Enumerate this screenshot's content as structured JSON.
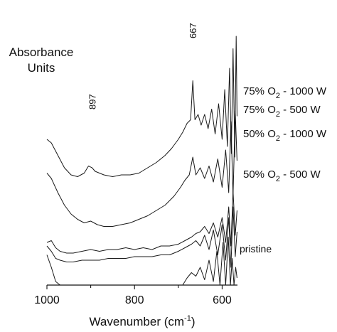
{
  "chart_data": {
    "type": "line",
    "title": "",
    "ylabel_line1": "Absorbance",
    "ylabel_line2": "Units",
    "xlabel_main": "Wavenumber (cm",
    "xlabel_sup": "-1",
    "xlabel_end": ")",
    "xlim": [
      1000,
      565
    ],
    "x_ticks": [
      1000,
      800,
      600
    ],
    "x_tick_labels": [
      "1000",
      "800",
      "600"
    ],
    "peak_annotations": [
      {
        "label": "897",
        "x": 897
      },
      {
        "label": "667",
        "x": 667
      }
    ],
    "series": [
      {
        "name": "75% O2 - 1000 W",
        "label_pre": "75% O",
        "label_sub": "2",
        "label_post": " - 1000 W",
        "x": [
          1000,
          990,
          975,
          960,
          945,
          930,
          915,
          905,
          897,
          890,
          870,
          850,
          830,
          810,
          790,
          770,
          750,
          730,
          715,
          700,
          690,
          680,
          672,
          667,
          662,
          655,
          648,
          640,
          632,
          624,
          616,
          608,
          600,
          594,
          588,
          583,
          579,
          575,
          571,
          568,
          566
        ],
        "y": [
          0.82,
          0.8,
          0.73,
          0.66,
          0.62,
          0.61,
          0.63,
          0.67,
          0.66,
          0.64,
          0.62,
          0.61,
          0.62,
          0.62,
          0.63,
          0.66,
          0.69,
          0.73,
          0.77,
          0.82,
          0.86,
          0.91,
          0.93,
          1.15,
          0.93,
          0.96,
          0.9,
          0.96,
          0.88,
          0.99,
          0.85,
          1.02,
          0.82,
          1.1,
          0.78,
          1.22,
          0.74,
          1.33,
          0.72,
          1.4,
          0.95
        ]
      },
      {
        "name": "75% O2 - 500 W",
        "label_pre": "75% O",
        "label_sub": "2",
        "label_post": " - 500 W",
        "x": [
          1000,
          990,
          975,
          960,
          945,
          930,
          915,
          900,
          885,
          870,
          850,
          830,
          810,
          790,
          770,
          750,
          730,
          710,
          695,
          685,
          675,
          667,
          660,
          650,
          640,
          630,
          620,
          610,
          600,
          592,
          585,
          580,
          575,
          570,
          566
        ],
        "y": [
          0.63,
          0.6,
          0.52,
          0.45,
          0.4,
          0.37,
          0.35,
          0.36,
          0.34,
          0.33,
          0.33,
          0.34,
          0.35,
          0.37,
          0.39,
          0.42,
          0.45,
          0.5,
          0.55,
          0.59,
          0.62,
          0.72,
          0.62,
          0.66,
          0.6,
          0.67,
          0.58,
          0.71,
          0.55,
          0.76,
          0.52,
          0.92,
          0.5,
          0.98,
          0.7
        ]
      },
      {
        "name": "50% O2 - 1000 W",
        "label_pre": "50% O",
        "label_sub": "2",
        "label_post": " - 1000 W",
        "x": [
          1000,
          990,
          980,
          970,
          955,
          940,
          920,
          900,
          880,
          860,
          840,
          820,
          800,
          780,
          760,
          740,
          720,
          700,
          685,
          670,
          660,
          650,
          640,
          630,
          620,
          610,
          600,
          592,
          585,
          580,
          575,
          570,
          566
        ],
        "y": [
          0.24,
          0.25,
          0.21,
          0.19,
          0.18,
          0.18,
          0.19,
          0.2,
          0.19,
          0.2,
          0.2,
          0.21,
          0.2,
          0.21,
          0.2,
          0.22,
          0.22,
          0.23,
          0.25,
          0.27,
          0.29,
          0.3,
          0.33,
          0.29,
          0.35,
          0.27,
          0.38,
          0.24,
          0.44,
          0.22,
          0.53,
          0.28,
          0.42
        ]
      },
      {
        "name": "50% O2 - 500 W",
        "label_pre": "50% O",
        "label_sub": "2",
        "label_post": " - 500 W",
        "x": [
          1000,
          990,
          980,
          970,
          955,
          940,
          920,
          900,
          880,
          860,
          840,
          820,
          800,
          780,
          760,
          740,
          720,
          700,
          685,
          670,
          660,
          650,
          640,
          630,
          620,
          610,
          600,
          592,
          585,
          580,
          575,
          570,
          566
        ],
        "y": [
          0.22,
          0.19,
          0.15,
          0.14,
          0.13,
          0.13,
          0.14,
          0.14,
          0.14,
          0.15,
          0.15,
          0.15,
          0.16,
          0.16,
          0.16,
          0.17,
          0.17,
          0.19,
          0.21,
          0.23,
          0.25,
          0.22,
          0.28,
          0.2,
          0.31,
          0.17,
          0.34,
          0.14,
          0.38,
          0.1,
          0.44,
          0.16,
          0.3
        ]
      },
      {
        "name": "pristine",
        "label_pre": "pristine",
        "label_sub": "",
        "label_post": "",
        "x": [
          1000,
          990,
          980,
          970,
          960,
          950,
          740,
          730,
          715,
          700,
          690,
          680,
          670,
          660,
          650,
          640,
          630,
          620,
          612,
          605,
          598,
          592,
          586,
          581,
          577,
          573,
          569,
          566
        ],
        "y": [
          0.17,
          0.1,
          0.02,
          -0.07,
          -0.16,
          -0.25,
          -0.25,
          -0.19,
          -0.13,
          -0.07,
          -0.01,
          0.04,
          0.07,
          0.05,
          0.1,
          0.03,
          0.14,
          0.02,
          0.19,
          -0.01,
          0.24,
          -0.06,
          0.27,
          -0.13,
          0.15,
          -0.04,
          0.1,
          0.04
        ]
      }
    ],
    "grid": false,
    "legend": "inline labels at right"
  }
}
